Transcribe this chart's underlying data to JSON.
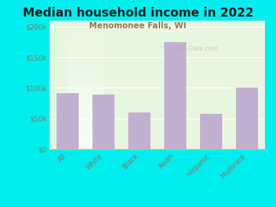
{
  "title": "Median household income in 2022",
  "subtitle": "Menomonee Falls, WI",
  "categories": [
    "All",
    "White",
    "Black",
    "Asian",
    "Hispanic",
    "Multirace"
  ],
  "values": [
    92000,
    89000,
    60000,
    175000,
    58000,
    101000
  ],
  "bar_color": "#c2b0d0",
  "background_outer": "#00eeee",
  "background_plot_top": "#e8f5e0",
  "background_plot_bottom": "#f5fff5",
  "title_color": "#222222",
  "subtitle_color": "#997755",
  "tick_label_color": "#887766",
  "ylim": [
    0,
    210000
  ],
  "yticks": [
    0,
    50000,
    100000,
    150000,
    200000
  ],
  "ytick_labels": [
    "$0",
    "$50k",
    "$100k",
    "$150k",
    "$200k"
  ],
  "title_fontsize": 12.5,
  "subtitle_fontsize": 8.5,
  "tick_fontsize": 7,
  "watermark": "City-Data.com"
}
